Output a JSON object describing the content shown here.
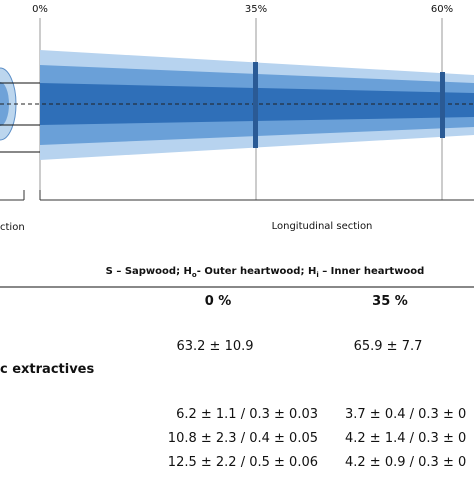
{
  "figure": {
    "positions": [
      "0%",
      "35%",
      "60%"
    ],
    "cross_section_label": "ction",
    "longitudinal_label": "Longitudinal section"
  },
  "legend": [
    "S – Sapwood; H",
    "o",
    "- Outer heartwood; H",
    "i",
    " – Inner heartwood"
  ],
  "table": {
    "header": [
      "0 %",
      "35 %"
    ],
    "rows": [
      [
        "63.2 ± 10.9",
        "65.9 ± 7.7"
      ]
    ],
    "section": "c extractives",
    "section_rows": [
      [
        "6.2 ± 1.1 / 0.3 ± 0.03",
        "3.7 ± 0.4 / 0.3 ± 0"
      ],
      [
        "10.8 ± 2.3 / 0.4 ± 0.05",
        "4.2 ± 1.4 / 0.3 ± 0"
      ],
      [
        "12.5 ± 2.2 / 0.5 ± 0.06",
        "4.2 ± 0.9 / 0.3 ± 0"
      ]
    ]
  }
}
